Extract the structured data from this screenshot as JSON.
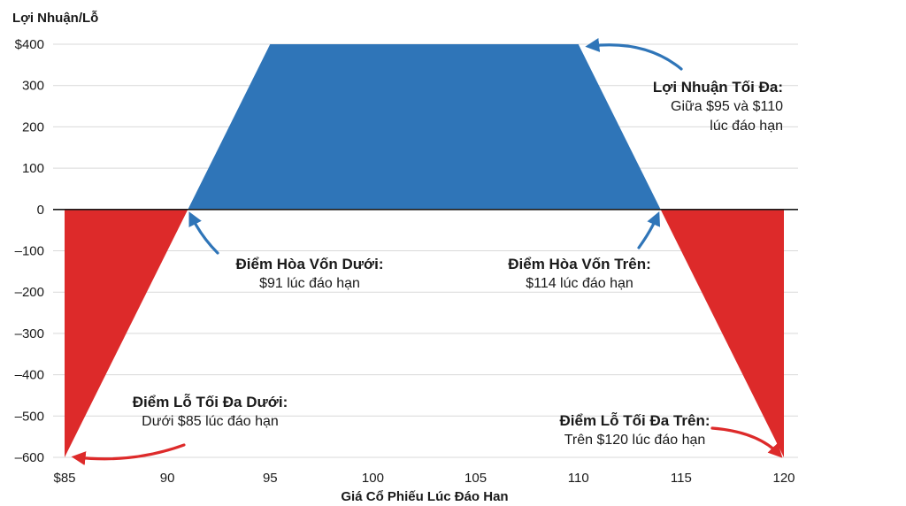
{
  "chart_data": {
    "type": "area",
    "ylabel": "Lợi Nhuận/Lỗ",
    "xlabel": "Giá Cổ Phiếu Lúc Đáo Han",
    "xlim": [
      85,
      120
    ],
    "ylim": [
      -600,
      400
    ],
    "x_ticks": [
      "$85",
      "90",
      "95",
      "100",
      "105",
      "110",
      "115",
      "120"
    ],
    "x_tick_values": [
      85,
      90,
      95,
      100,
      105,
      110,
      115,
      120
    ],
    "y_ticks": [
      "$400",
      "300",
      "200",
      "100",
      "0",
      "–100",
      "–200",
      "–300",
      "–400",
      "–500",
      "–600"
    ],
    "y_tick_values": [
      400,
      300,
      200,
      100,
      0,
      -100,
      -200,
      -300,
      -400,
      -500,
      -600
    ],
    "grid": true,
    "series": [
      {
        "x": [
          85,
          91,
          95,
          110,
          114,
          120
        ],
        "y": [
          -600,
          0,
          400,
          400,
          0,
          -600
        ]
      }
    ],
    "colors": {
      "profit": "#2f75b8",
      "loss": "#dd2a2a",
      "grid": "#d9d9d9",
      "zero_line": "#1a1a1a",
      "arrow_blue": "#2f75b8",
      "arrow_red": "#dd2a2a"
    },
    "annotations": [
      {
        "id": "max_profit",
        "title": "Lợi Nhuận Tối Đa:",
        "lines": [
          "Giữa $95 và $110",
          "lúc đáo hạn"
        ],
        "point": [
          110,
          400
        ]
      },
      {
        "id": "lower_be",
        "title": "Điểm Hòa Vốn Dưới:",
        "lines": [
          "$91 lúc đáo hạn"
        ],
        "point": [
          91,
          0
        ]
      },
      {
        "id": "upper_be",
        "title": "Điểm Hòa Vốn Trên:",
        "lines": [
          "$114 lúc đáo hạn"
        ],
        "point": [
          114,
          0
        ]
      },
      {
        "id": "lower_loss",
        "title": "Điểm Lỗ Tối Đa Dưới:",
        "lines": [
          "Dưới $85 lúc đáo hạn"
        ],
        "point": [
          85,
          -600
        ]
      },
      {
        "id": "upper_loss",
        "title": "Điểm Lỗ Tối Đa Trên:",
        "lines": [
          "Trên $120 lúc đáo hạn"
        ],
        "point": [
          120,
          -600
        ]
      }
    ]
  }
}
